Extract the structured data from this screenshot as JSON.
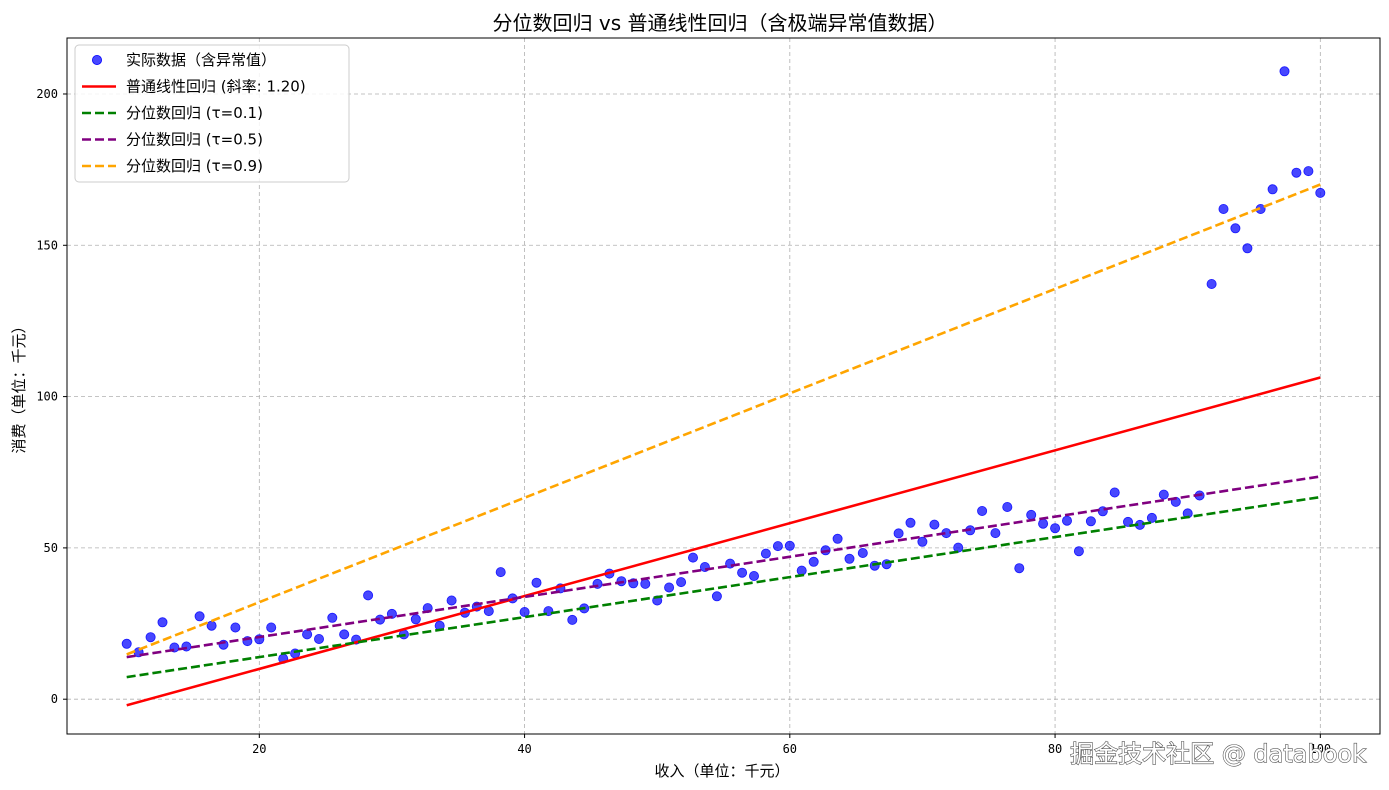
{
  "chart_data": {
    "type": "scatter",
    "title": "分位数回归 vs 普通线性回归（含极端异常值数据）",
    "xlabel": "收入（单位：千元）",
    "ylabel": "消费（单位：千元）",
    "xlim": [
      5.5,
      104.5
    ],
    "ylim": [
      -11.5,
      218.5
    ],
    "xticks": [
      20,
      40,
      60,
      80,
      100
    ],
    "xtick_labels": [
      "20",
      "40",
      "60",
      "80",
      "100"
    ],
    "yticks": [
      0,
      50,
      100,
      150,
      200
    ],
    "ytick_labels": [
      "0",
      "50",
      "100",
      "150",
      "200"
    ],
    "grid": true,
    "legend_position": "top-left",
    "scatter": {
      "name": "实际数据（含异常值）",
      "color": "#0000ff",
      "x": [
        10.0,
        10.9,
        11.8,
        12.7,
        13.6,
        14.5,
        15.5,
        16.4,
        17.3,
        18.2,
        19.1,
        20.0,
        20.9,
        21.8,
        22.7,
        23.6,
        24.5,
        25.5,
        26.4,
        27.3,
        28.2,
        29.1,
        30.0,
        30.9,
        31.8,
        32.7,
        33.6,
        34.5,
        35.5,
        36.4,
        37.3,
        38.2,
        39.1,
        40.0,
        40.9,
        41.8,
        42.7,
        43.6,
        44.5,
        45.5,
        46.4,
        47.3,
        48.2,
        49.1,
        50.0,
        50.9,
        51.8,
        52.7,
        53.6,
        54.5,
        55.5,
        56.4,
        57.3,
        58.2,
        59.1,
        60.0,
        60.9,
        61.8,
        62.7,
        63.6,
        64.5,
        65.5,
        66.4,
        67.3,
        68.2,
        69.1,
        70.0,
        70.9,
        71.8,
        72.7,
        73.6,
        74.5,
        75.5,
        76.4,
        77.3,
        78.2,
        79.1,
        80.0,
        80.9,
        81.8,
        82.7,
        83.6,
        84.5,
        85.5,
        86.4,
        87.3,
        88.2,
        89.1,
        90.0,
        90.9,
        91.8,
        92.7,
        93.6,
        94.5,
        95.5,
        96.4,
        97.3,
        98.2,
        99.1,
        100.0
      ],
      "y": [
        18.3,
        15.5,
        20.5,
        25.4,
        17.1,
        17.4,
        27.4,
        24.3,
        18.0,
        23.7,
        19.2,
        19.8,
        23.7,
        13.4,
        15.1,
        21.4,
        19.9,
        26.9,
        21.4,
        19.7,
        34.3,
        26.3,
        28.2,
        21.4,
        26.4,
        30.1,
        24.3,
        32.6,
        28.6,
        30.6,
        29.1,
        42.0,
        33.3,
        28.8,
        38.5,
        29.1,
        36.6,
        26.2,
        30.0,
        38.1,
        41.5,
        39.0,
        38.3,
        38.1,
        32.6,
        36.9,
        38.7,
        46.8,
        43.7,
        34.0,
        44.8,
        41.8,
        40.7,
        48.1,
        50.6,
        50.7,
        42.5,
        45.4,
        49.2,
        53.0,
        46.4,
        48.3,
        44.1,
        44.6,
        54.8,
        58.3,
        52.0,
        57.7,
        54.9,
        50.1,
        55.8,
        62.2,
        54.9,
        63.5,
        43.3,
        60.9,
        58.0,
        56.5,
        59.0,
        48.9,
        58.8,
        62.1,
        68.3,
        58.6,
        57.6,
        59.9,
        67.6,
        65.2,
        61.4,
        67.3,
        137.2,
        162.0,
        155.6,
        149.0,
        162.0,
        168.5,
        207.5,
        174.0,
        174.5,
        167.3
      ]
    },
    "series": [
      {
        "name": "普通线性回归 (斜率: 1.20)",
        "color": "#ff0000",
        "style": "solid",
        "x": [
          10,
          100
        ],
        "y": [
          -2.0,
          106.3
        ]
      },
      {
        "name": "分位数回归 (τ=0.1)",
        "color": "#008000",
        "style": "dashed",
        "x": [
          10,
          100
        ],
        "y": [
          7.3,
          66.8
        ]
      },
      {
        "name": "分位数回归 (τ=0.5)",
        "color": "#800080",
        "style": "dashed",
        "x": [
          10,
          100
        ],
        "y": [
          13.9,
          73.6
        ]
      },
      {
        "name": "分位数回归 (τ=0.9)",
        "color": "#ffa500",
        "style": "dashed",
        "x": [
          10,
          100
        ],
        "y": [
          14.8,
          170.1
        ]
      }
    ],
    "watermark": "掘金技术社区 @ databook"
  }
}
